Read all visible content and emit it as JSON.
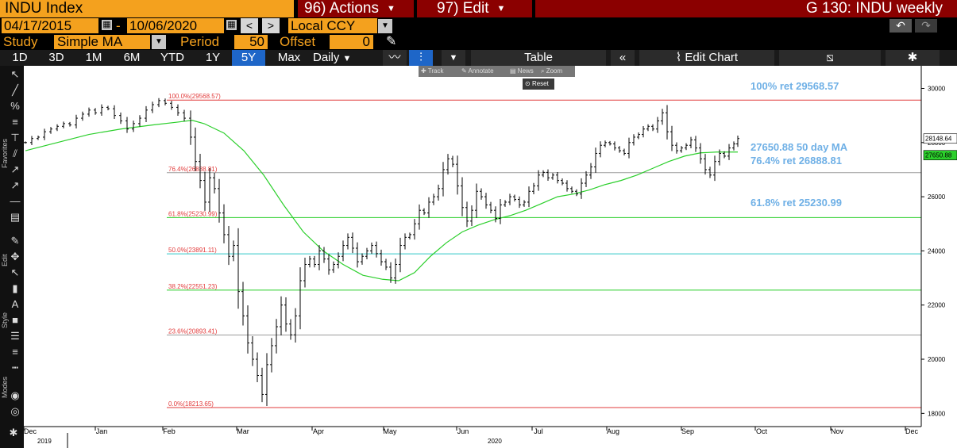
{
  "header": {
    "security_title": "INDU Index",
    "menus": [
      {
        "label": "96) Actions"
      },
      {
        "label": "97) Edit"
      }
    ],
    "window_title": "G 130: INDU weekly"
  },
  "date_range": {
    "start": "04/17/2015",
    "separator": "-",
    "end": "10/06/2020",
    "prev": "<",
    "next": ">",
    "currency": "Local CCY"
  },
  "study": {
    "study_label": "Study",
    "study_value": "Simple MA",
    "period_label": "Period",
    "period_value": "50",
    "offset_label": "Offset",
    "offset_value": "0"
  },
  "range_bar": {
    "ranges": [
      "1D",
      "3D",
      "1M",
      "6M",
      "YTD",
      "1Y",
      "5Y",
      "Max"
    ],
    "selected": "5Y",
    "frequency": "Daily",
    "table_label": "Table",
    "edit_chart_label": "Edit Chart"
  },
  "chart_toolbar": {
    "items": [
      "Track",
      "Annotate",
      "News",
      "Zoom"
    ],
    "reset_label": "Reset"
  },
  "side_labels": {
    "favorites": "Favorites",
    "edit": "Edit",
    "style": "Style",
    "modes": "Modes"
  },
  "chart_data": {
    "type": "ohlc",
    "title": "INDU weekly",
    "ylim": [
      17600,
      30600
    ],
    "y_ticks": [
      18000,
      20000,
      22000,
      24000,
      26000,
      28000,
      30000
    ],
    "x_tick_labels": [
      "Dec",
      "Jan",
      "Feb",
      "Mar",
      "Apr",
      "May",
      "Jun",
      "Jul",
      "Aug",
      "Sep",
      "Oct",
      "Nov",
      "Dec"
    ],
    "year_labels": [
      {
        "label": "2019",
        "under": "Dec"
      },
      {
        "label": "2020",
        "under": "Jun"
      }
    ],
    "grid": false,
    "last_price": 28148.64,
    "last_ma": 27650.88,
    "price_series_approx": [
      [
        0,
        28000
      ],
      [
        8,
        28150
      ],
      [
        16,
        28200
      ],
      [
        24,
        28400
      ],
      [
        32,
        28500
      ],
      [
        40,
        28600
      ],
      [
        48,
        28700
      ],
      [
        56,
        28650
      ],
      [
        64,
        28900
      ],
      [
        72,
        29050
      ],
      [
        80,
        29200
      ],
      [
        88,
        29100
      ],
      [
        96,
        29300
      ],
      [
        104,
        29250
      ],
      [
        112,
        29000
      ],
      [
        120,
        28800
      ],
      [
        128,
        28500
      ],
      [
        136,
        28700
      ],
      [
        144,
        28900
      ],
      [
        152,
        29200
      ],
      [
        160,
        29400
      ],
      [
        168,
        29550
      ],
      [
        176,
        29450
      ],
      [
        184,
        29300
      ],
      [
        192,
        29100
      ],
      [
        200,
        28900
      ],
      [
        208,
        28200
      ],
      [
        214,
        27300
      ],
      [
        220,
        26600
      ],
      [
        226,
        25800
      ],
      [
        232,
        26700
      ],
      [
        238,
        26300
      ],
      [
        244,
        25400
      ],
      [
        250,
        24600
      ],
      [
        256,
        23800
      ],
      [
        262,
        24200
      ],
      [
        268,
        22500
      ],
      [
        274,
        21600
      ],
      [
        280,
        20600
      ],
      [
        286,
        20000
      ],
      [
        292,
        19400
      ],
      [
        298,
        18700
      ],
      [
        304,
        19800
      ],
      [
        310,
        20500
      ],
      [
        316,
        21200
      ],
      [
        322,
        22000
      ],
      [
        328,
        21300
      ],
      [
        334,
        20900
      ],
      [
        340,
        21600
      ],
      [
        346,
        22900
      ],
      [
        352,
        23500
      ],
      [
        358,
        23700
      ],
      [
        364,
        23500
      ],
      [
        370,
        24000
      ],
      [
        376,
        23700
      ],
      [
        382,
        23300
      ],
      [
        388,
        23500
      ],
      [
        394,
        23800
      ],
      [
        400,
        24200
      ],
      [
        406,
        24500
      ],
      [
        412,
        24100
      ],
      [
        418,
        23600
      ],
      [
        424,
        23800
      ],
      [
        430,
        24000
      ],
      [
        436,
        24200
      ],
      [
        442,
        23900
      ],
      [
        448,
        23600
      ],
      [
        454,
        23400
      ],
      [
        460,
        23000
      ],
      [
        466,
        23500
      ],
      [
        472,
        24200
      ],
      [
        478,
        24500
      ],
      [
        484,
        24600
      ],
      [
        490,
        25000
      ],
      [
        496,
        25500
      ],
      [
        502,
        25400
      ],
      [
        508,
        25800
      ],
      [
        514,
        26000
      ],
      [
        520,
        26300
      ],
      [
        526,
        27000
      ],
      [
        532,
        27400
      ],
      [
        538,
        27200
      ],
      [
        544,
        26400
      ],
      [
        550,
        25600
      ],
      [
        556,
        25100
      ],
      [
        562,
        25500
      ],
      [
        568,
        26200
      ],
      [
        574,
        26000
      ],
      [
        580,
        25700
      ],
      [
        586,
        25500
      ],
      [
        592,
        25200
      ],
      [
        598,
        25700
      ],
      [
        604,
        25800
      ],
      [
        610,
        26000
      ],
      [
        616,
        25900
      ],
      [
        622,
        25700
      ],
      [
        628,
        25800
      ],
      [
        634,
        26200
      ],
      [
        640,
        26400
      ],
      [
        646,
        26800
      ],
      [
        652,
        26900
      ],
      [
        658,
        26700
      ],
      [
        664,
        26800
      ],
      [
        670,
        26600
      ],
      [
        676,
        26500
      ],
      [
        682,
        26300
      ],
      [
        688,
        26200
      ],
      [
        694,
        26100
      ],
      [
        700,
        26500
      ],
      [
        706,
        26800
      ],
      [
        712,
        27100
      ],
      [
        718,
        27600
      ],
      [
        724,
        27900
      ],
      [
        730,
        28000
      ],
      [
        736,
        27950
      ],
      [
        742,
        27800
      ],
      [
        748,
        27700
      ],
      [
        754,
        27600
      ],
      [
        760,
        28000
      ],
      [
        766,
        28200
      ],
      [
        772,
        28300
      ],
      [
        778,
        28500
      ],
      [
        784,
        28600
      ],
      [
        790,
        28500
      ],
      [
        796,
        28800
      ],
      [
        802,
        29100
      ],
      [
        808,
        28400
      ],
      [
        814,
        27900
      ],
      [
        820,
        27700
      ],
      [
        826,
        27800
      ],
      [
        832,
        27900
      ],
      [
        838,
        28100
      ],
      [
        844,
        27800
      ],
      [
        850,
        27400
      ],
      [
        856,
        27000
      ],
      [
        862,
        26800
      ],
      [
        868,
        27300
      ],
      [
        874,
        27600
      ],
      [
        880,
        27500
      ],
      [
        886,
        27800
      ],
      [
        892,
        27950
      ],
      [
        897,
        28148.64
      ]
    ],
    "ma_series_approx": [
      [
        0,
        27700
      ],
      [
        40,
        28000
      ],
      [
        80,
        28300
      ],
      [
        120,
        28500
      ],
      [
        160,
        28650
      ],
      [
        190,
        28750
      ],
      [
        210,
        28820
      ],
      [
        225,
        28700
      ],
      [
        250,
        28350
      ],
      [
        275,
        27700
      ],
      [
        300,
        26800
      ],
      [
        325,
        25700
      ],
      [
        350,
        24700
      ],
      [
        375,
        24000
      ],
      [
        400,
        23500
      ],
      [
        425,
        23100
      ],
      [
        450,
        22950
      ],
      [
        470,
        22900
      ],
      [
        490,
        23200
      ],
      [
        510,
        23800
      ],
      [
        530,
        24300
      ],
      [
        550,
        24700
      ],
      [
        570,
        24950
      ],
      [
        590,
        25150
      ],
      [
        610,
        25300
      ],
      [
        630,
        25500
      ],
      [
        650,
        25750
      ],
      [
        670,
        26000
      ],
      [
        690,
        26100
      ],
      [
        710,
        26250
      ],
      [
        730,
        26450
      ],
      [
        750,
        26600
      ],
      [
        770,
        26800
      ],
      [
        790,
        27050
      ],
      [
        810,
        27300
      ],
      [
        830,
        27500
      ],
      [
        850,
        27620
      ],
      [
        870,
        27650
      ],
      [
        897,
        27650.88
      ]
    ],
    "fib_levels": [
      {
        "label": "100.0%(29568.57)",
        "value": 29568.57,
        "color": "#e23b3b"
      },
      {
        "label": "76.4%(26888.81)",
        "value": 26888.81,
        "color": "#9a9a9a"
      },
      {
        "label": "61.8%(25230.99)",
        "value": 25230.99,
        "color": "#2bcf2b"
      },
      {
        "label": "50.0%(23891.11)",
        "value": 23891.11,
        "color": "#2bc7c7"
      },
      {
        "label": "38.2%(22551.23)",
        "value": 22551.23,
        "color": "#2bcf2b"
      },
      {
        "label": "23.6%(20893.41)",
        "value": 20893.41,
        "color": "#9a9a9a"
      },
      {
        "label": "0.0%(18213.65)",
        "value": 18213.65,
        "color": "#e23b3b"
      }
    ],
    "annotations": [
      {
        "text": "100% ret 29568.57",
        "value": 29568.57
      },
      {
        "text": "27650.88 50 day MA",
        "value": 27650.88
      },
      {
        "text": "76.4% ret 26888.81",
        "value": 26888.81
      },
      {
        "text": "61.8% ret 25230.99",
        "value": 25230.99
      }
    ],
    "price_tags": [
      {
        "text": "28148.64",
        "value": 28148.64,
        "bg": "#ffffff",
        "fg": "#000000"
      },
      {
        "text": "27650.88",
        "value": 27650.88,
        "bg": "#2bcf2b",
        "fg": "#000000"
      }
    ],
    "colors": {
      "price": "#000000",
      "ma": "#2bcf2b",
      "annotation": "#6fb0e6"
    }
  }
}
